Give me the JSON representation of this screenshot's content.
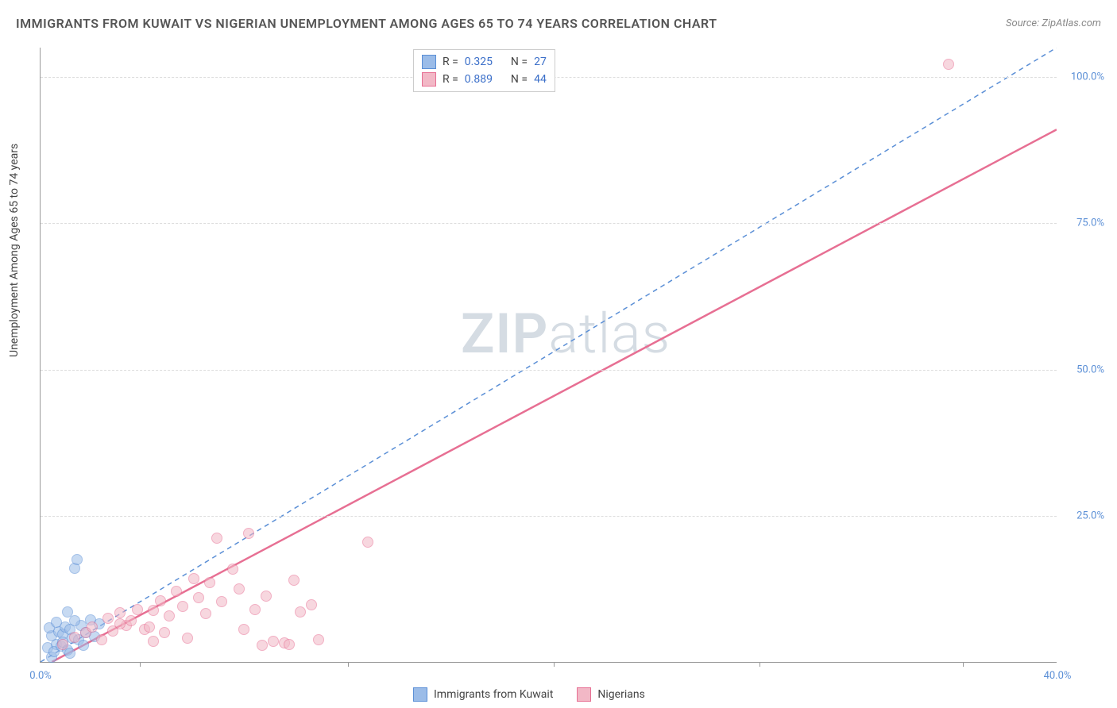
{
  "title": "IMMIGRANTS FROM KUWAIT VS NIGERIAN UNEMPLOYMENT AMONG AGES 65 TO 74 YEARS CORRELATION CHART",
  "source": "Source: ZipAtlas.com",
  "watermark": {
    "prefix": "ZIP",
    "suffix": "atlas"
  },
  "chart": {
    "type": "scatter",
    "background_color": "#ffffff",
    "grid_color": "#dddddd",
    "axis_color": "#999999",
    "tick_color": "#5b8fd6",
    "y_label": "Unemployment Among Ages 65 to 74 years",
    "x_label": "",
    "xlim": [
      0,
      45
    ],
    "ylim": [
      0,
      105
    ],
    "x_ticks": [
      {
        "pos": 0,
        "label": "0.0%"
      },
      {
        "pos": 45,
        "label": "40.0%"
      }
    ],
    "x_tick_marks": [
      4.4,
      13.6,
      22.7,
      31.8,
      40.8
    ],
    "y_ticks": [
      {
        "pos": 25,
        "label": "25.0%"
      },
      {
        "pos": 50,
        "label": "50.0%"
      },
      {
        "pos": 75,
        "label": "75.0%"
      },
      {
        "pos": 100,
        "label": "100.0%"
      }
    ],
    "series": [
      {
        "name": "Immigrants from Kuwait",
        "fill": "#9bbce8",
        "stroke": "#5b8fd6",
        "fill_opacity": 0.55,
        "marker_radius": 7,
        "r_value": "0.325",
        "n_value": "27",
        "trend": {
          "x1": 0,
          "y1": 0,
          "x2": 45,
          "y2": 105,
          "dash": "6,5",
          "width": 1.5
        },
        "points": [
          [
            0.3,
            2.5
          ],
          [
            0.5,
            4.5
          ],
          [
            0.7,
            3.0
          ],
          [
            0.8,
            5.2
          ],
          [
            1.0,
            4.8
          ],
          [
            1.1,
            6.0
          ],
          [
            1.3,
            5.5
          ],
          [
            1.4,
            4.0
          ],
          [
            1.5,
            16.0
          ],
          [
            1.6,
            17.5
          ],
          [
            1.8,
            6.3
          ],
          [
            2.0,
            5.0
          ],
          [
            2.2,
            7.2
          ],
          [
            2.4,
            4.3
          ],
          [
            2.6,
            6.5
          ],
          [
            0.5,
            0.8
          ],
          [
            0.6,
            1.8
          ],
          [
            0.9,
            2.7
          ],
          [
            1.0,
            3.4
          ],
          [
            1.2,
            2.1
          ],
          [
            1.3,
            1.5
          ],
          [
            1.7,
            3.8
          ],
          [
            1.9,
            2.9
          ],
          [
            0.4,
            5.8
          ],
          [
            0.7,
            6.8
          ],
          [
            1.2,
            8.5
          ],
          [
            1.5,
            7.0
          ]
        ]
      },
      {
        "name": "Nigerians",
        "fill": "#f2b8c6",
        "stroke": "#e76f93",
        "fill_opacity": 0.55,
        "marker_radius": 7,
        "r_value": "0.889",
        "n_value": "44",
        "trend": {
          "x1": 0.5,
          "y1": 0,
          "x2": 45,
          "y2": 91,
          "dash": "none",
          "width": 2.5
        },
        "points": [
          [
            1.0,
            3.0
          ],
          [
            1.5,
            4.2
          ],
          [
            2.0,
            5.0
          ],
          [
            2.3,
            6.0
          ],
          [
            2.7,
            3.8
          ],
          [
            3.0,
            7.5
          ],
          [
            3.2,
            5.3
          ],
          [
            3.5,
            8.4
          ],
          [
            3.8,
            6.2
          ],
          [
            4.0,
            7.0
          ],
          [
            4.3,
            9.0
          ],
          [
            4.6,
            5.5
          ],
          [
            5.0,
            8.8
          ],
          [
            5.3,
            10.5
          ],
          [
            5.7,
            7.8
          ],
          [
            6.0,
            12.0
          ],
          [
            6.3,
            9.5
          ],
          [
            6.8,
            14.2
          ],
          [
            7.0,
            11.0
          ],
          [
            7.3,
            8.2
          ],
          [
            7.5,
            13.5
          ],
          [
            7.8,
            21.2
          ],
          [
            8.0,
            10.3
          ],
          [
            8.5,
            15.8
          ],
          [
            8.8,
            12.5
          ],
          [
            9.2,
            22.0
          ],
          [
            9.5,
            9.0
          ],
          [
            10.0,
            11.3
          ],
          [
            10.3,
            3.5
          ],
          [
            10.8,
            3.2
          ],
          [
            11.2,
            14.0
          ],
          [
            11.5,
            8.5
          ],
          [
            12.0,
            9.8
          ],
          [
            5.5,
            5.0
          ],
          [
            5.0,
            3.5
          ],
          [
            6.5,
            4.0
          ],
          [
            9.0,
            5.5
          ],
          [
            9.8,
            2.8
          ],
          [
            11.0,
            3.0
          ],
          [
            12.3,
            3.8
          ],
          [
            14.5,
            20.5
          ],
          [
            3.5,
            6.5
          ],
          [
            4.8,
            6.0
          ],
          [
            40.2,
            102.0
          ]
        ]
      }
    ],
    "legend_stats": {
      "label_r": "R =",
      "label_n": "N ="
    },
    "x_legend_items": [
      {
        "label": "Immigrants from Kuwait",
        "fill": "#9bbce8",
        "stroke": "#5b8fd6"
      },
      {
        "label": "Nigerians",
        "fill": "#f2b8c6",
        "stroke": "#e76f93"
      }
    ],
    "title_fontsize": 16,
    "label_fontsize": 14
  }
}
